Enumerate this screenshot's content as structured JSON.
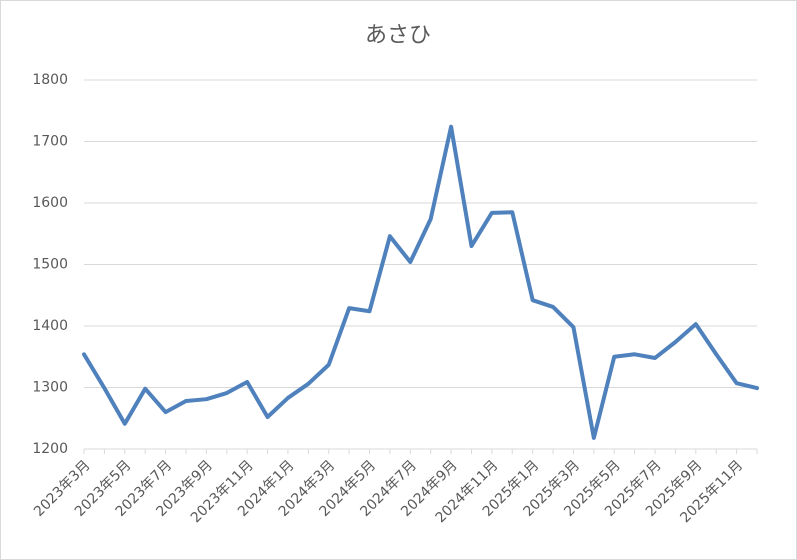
{
  "chart_data": {
    "type": "line",
    "title": "あさひ",
    "categories": [
      "2023年3月",
      null,
      "2023年5月",
      null,
      "2023年7月",
      null,
      "2023年9月",
      null,
      "2023年11月",
      null,
      "2024年1月",
      null,
      "2024年3月",
      null,
      "2024年5月",
      null,
      "2024年7月",
      null,
      "2024年9月",
      null,
      "2024年11月",
      null,
      "2025年1月",
      null,
      "2025年3月",
      null,
      "2025年5月",
      null,
      "2025年7月",
      null,
      "2025年9月",
      null,
      "2025年11月",
      null
    ],
    "values": [
      1354,
      1299,
      1241,
      1298,
      1260,
      1278,
      1281,
      1291,
      1309,
      1252,
      1283,
      1306,
      1337,
      1429,
      1424,
      1546,
      1504,
      1574,
      1724,
      1530,
      1584,
      1585,
      1442,
      1431,
      1398,
      1218,
      1350,
      1354,
      1348,
      1374,
      1403,
      1354,
      1307,
      1299
    ],
    "color": "#4f81bd",
    "ylim": [
      1200,
      1800
    ],
    "yticks": [
      1200,
      1300,
      1400,
      1500,
      1600,
      1700,
      1800
    ],
    "grid": true
  }
}
